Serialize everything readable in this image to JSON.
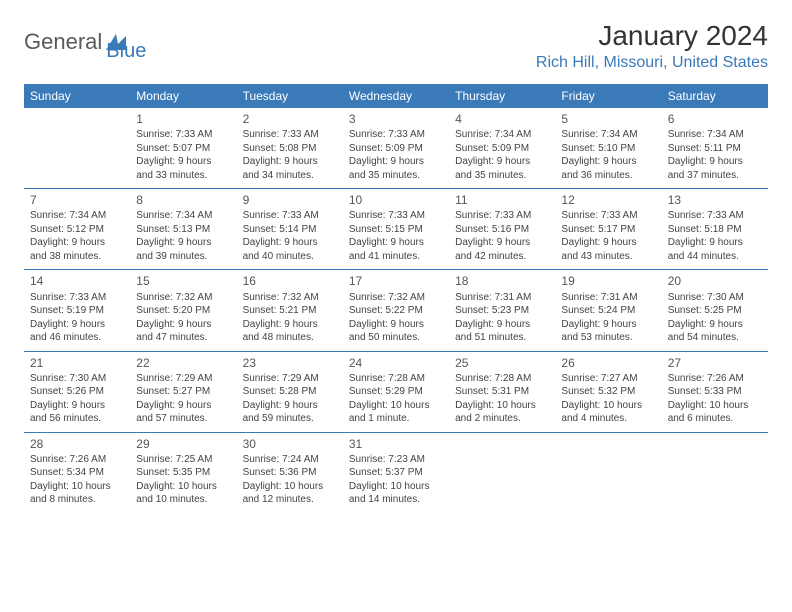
{
  "logo": {
    "part1": "General",
    "part2": "Blue"
  },
  "title": "January 2024",
  "location": "Rich Hill, Missouri, United States",
  "weekdays": [
    "Sunday",
    "Monday",
    "Tuesday",
    "Wednesday",
    "Thursday",
    "Friday",
    "Saturday"
  ],
  "colors": {
    "brand": "#3a7ab8",
    "header_text": "#ffffff",
    "cell_border": "#3a7ab8",
    "text": "#444444",
    "title_text": "#333333",
    "logo_gray": "#5a5a5a"
  },
  "start_offset": 1,
  "days": [
    {
      "n": "1",
      "sunrise": "Sunrise: 7:33 AM",
      "sunset": "Sunset: 5:07 PM",
      "daylight1": "Daylight: 9 hours",
      "daylight2": "and 33 minutes."
    },
    {
      "n": "2",
      "sunrise": "Sunrise: 7:33 AM",
      "sunset": "Sunset: 5:08 PM",
      "daylight1": "Daylight: 9 hours",
      "daylight2": "and 34 minutes."
    },
    {
      "n": "3",
      "sunrise": "Sunrise: 7:33 AM",
      "sunset": "Sunset: 5:09 PM",
      "daylight1": "Daylight: 9 hours",
      "daylight2": "and 35 minutes."
    },
    {
      "n": "4",
      "sunrise": "Sunrise: 7:34 AM",
      "sunset": "Sunset: 5:09 PM",
      "daylight1": "Daylight: 9 hours",
      "daylight2": "and 35 minutes."
    },
    {
      "n": "5",
      "sunrise": "Sunrise: 7:34 AM",
      "sunset": "Sunset: 5:10 PM",
      "daylight1": "Daylight: 9 hours",
      "daylight2": "and 36 minutes."
    },
    {
      "n": "6",
      "sunrise": "Sunrise: 7:34 AM",
      "sunset": "Sunset: 5:11 PM",
      "daylight1": "Daylight: 9 hours",
      "daylight2": "and 37 minutes."
    },
    {
      "n": "7",
      "sunrise": "Sunrise: 7:34 AM",
      "sunset": "Sunset: 5:12 PM",
      "daylight1": "Daylight: 9 hours",
      "daylight2": "and 38 minutes."
    },
    {
      "n": "8",
      "sunrise": "Sunrise: 7:34 AM",
      "sunset": "Sunset: 5:13 PM",
      "daylight1": "Daylight: 9 hours",
      "daylight2": "and 39 minutes."
    },
    {
      "n": "9",
      "sunrise": "Sunrise: 7:33 AM",
      "sunset": "Sunset: 5:14 PM",
      "daylight1": "Daylight: 9 hours",
      "daylight2": "and 40 minutes."
    },
    {
      "n": "10",
      "sunrise": "Sunrise: 7:33 AM",
      "sunset": "Sunset: 5:15 PM",
      "daylight1": "Daylight: 9 hours",
      "daylight2": "and 41 minutes."
    },
    {
      "n": "11",
      "sunrise": "Sunrise: 7:33 AM",
      "sunset": "Sunset: 5:16 PM",
      "daylight1": "Daylight: 9 hours",
      "daylight2": "and 42 minutes."
    },
    {
      "n": "12",
      "sunrise": "Sunrise: 7:33 AM",
      "sunset": "Sunset: 5:17 PM",
      "daylight1": "Daylight: 9 hours",
      "daylight2": "and 43 minutes."
    },
    {
      "n": "13",
      "sunrise": "Sunrise: 7:33 AM",
      "sunset": "Sunset: 5:18 PM",
      "daylight1": "Daylight: 9 hours",
      "daylight2": "and 44 minutes."
    },
    {
      "n": "14",
      "sunrise": "Sunrise: 7:33 AM",
      "sunset": "Sunset: 5:19 PM",
      "daylight1": "Daylight: 9 hours",
      "daylight2": "and 46 minutes."
    },
    {
      "n": "15",
      "sunrise": "Sunrise: 7:32 AM",
      "sunset": "Sunset: 5:20 PM",
      "daylight1": "Daylight: 9 hours",
      "daylight2": "and 47 minutes."
    },
    {
      "n": "16",
      "sunrise": "Sunrise: 7:32 AM",
      "sunset": "Sunset: 5:21 PM",
      "daylight1": "Daylight: 9 hours",
      "daylight2": "and 48 minutes."
    },
    {
      "n": "17",
      "sunrise": "Sunrise: 7:32 AM",
      "sunset": "Sunset: 5:22 PM",
      "daylight1": "Daylight: 9 hours",
      "daylight2": "and 50 minutes."
    },
    {
      "n": "18",
      "sunrise": "Sunrise: 7:31 AM",
      "sunset": "Sunset: 5:23 PM",
      "daylight1": "Daylight: 9 hours",
      "daylight2": "and 51 minutes."
    },
    {
      "n": "19",
      "sunrise": "Sunrise: 7:31 AM",
      "sunset": "Sunset: 5:24 PM",
      "daylight1": "Daylight: 9 hours",
      "daylight2": "and 53 minutes."
    },
    {
      "n": "20",
      "sunrise": "Sunrise: 7:30 AM",
      "sunset": "Sunset: 5:25 PM",
      "daylight1": "Daylight: 9 hours",
      "daylight2": "and 54 minutes."
    },
    {
      "n": "21",
      "sunrise": "Sunrise: 7:30 AM",
      "sunset": "Sunset: 5:26 PM",
      "daylight1": "Daylight: 9 hours",
      "daylight2": "and 56 minutes."
    },
    {
      "n": "22",
      "sunrise": "Sunrise: 7:29 AM",
      "sunset": "Sunset: 5:27 PM",
      "daylight1": "Daylight: 9 hours",
      "daylight2": "and 57 minutes."
    },
    {
      "n": "23",
      "sunrise": "Sunrise: 7:29 AM",
      "sunset": "Sunset: 5:28 PM",
      "daylight1": "Daylight: 9 hours",
      "daylight2": "and 59 minutes."
    },
    {
      "n": "24",
      "sunrise": "Sunrise: 7:28 AM",
      "sunset": "Sunset: 5:29 PM",
      "daylight1": "Daylight: 10 hours",
      "daylight2": "and 1 minute."
    },
    {
      "n": "25",
      "sunrise": "Sunrise: 7:28 AM",
      "sunset": "Sunset: 5:31 PM",
      "daylight1": "Daylight: 10 hours",
      "daylight2": "and 2 minutes."
    },
    {
      "n": "26",
      "sunrise": "Sunrise: 7:27 AM",
      "sunset": "Sunset: 5:32 PM",
      "daylight1": "Daylight: 10 hours",
      "daylight2": "and 4 minutes."
    },
    {
      "n": "27",
      "sunrise": "Sunrise: 7:26 AM",
      "sunset": "Sunset: 5:33 PM",
      "daylight1": "Daylight: 10 hours",
      "daylight2": "and 6 minutes."
    },
    {
      "n": "28",
      "sunrise": "Sunrise: 7:26 AM",
      "sunset": "Sunset: 5:34 PM",
      "daylight1": "Daylight: 10 hours",
      "daylight2": "and 8 minutes."
    },
    {
      "n": "29",
      "sunrise": "Sunrise: 7:25 AM",
      "sunset": "Sunset: 5:35 PM",
      "daylight1": "Daylight: 10 hours",
      "daylight2": "and 10 minutes."
    },
    {
      "n": "30",
      "sunrise": "Sunrise: 7:24 AM",
      "sunset": "Sunset: 5:36 PM",
      "daylight1": "Daylight: 10 hours",
      "daylight2": "and 12 minutes."
    },
    {
      "n": "31",
      "sunrise": "Sunrise: 7:23 AM",
      "sunset": "Sunset: 5:37 PM",
      "daylight1": "Daylight: 10 hours",
      "daylight2": "and 14 minutes."
    }
  ]
}
